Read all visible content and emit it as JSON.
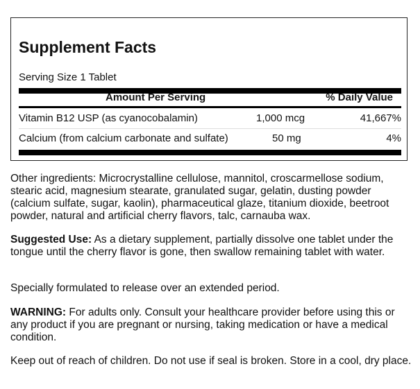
{
  "facts": {
    "title": "Supplement Facts",
    "serving_size": "Serving Size 1 Tablet",
    "header": {
      "amount": "Amount Per Serving",
      "daily_value": "% Daily Value"
    },
    "rows": [
      {
        "name": "Vitamin B12 USP (as cyanocobalamin)",
        "amount": "1,000 mcg",
        "dv": "41,667%"
      },
      {
        "name": "Calcium (from calcium carbonate and sulfate)",
        "amount": "50 mg",
        "dv": "4%"
      }
    ]
  },
  "other_ingredients": "Other ingredients: Microcrystalline cellulose, mannitol, croscarmellose sodium, stearic acid, magnesium stearate, granulated sugar, gelatin, dusting powder (calcium sulfate, sugar, kaolin), pharmaceutical glaze, titanium dioxide, beetroot powder, natural and artificial cherry flavors, talc, carnauba wax.",
  "suggested_use": {
    "label": "Suggested Use:",
    "text": " As a dietary supplement, partially dissolve one tablet under the tongue until the cherry flavor is gone, then swallow remaining tablet with water."
  },
  "formulation": "Specially formulated to release over an extended period.",
  "warning": {
    "label": "WARNING:",
    "text": " For adults only. Consult your healthcare provider before using this or any product if you are pregnant or nursing, taking medication or have a medical condition."
  },
  "storage": "Keep out of reach of children. Do not use if seal is broken. Store in a cool, dry place."
}
